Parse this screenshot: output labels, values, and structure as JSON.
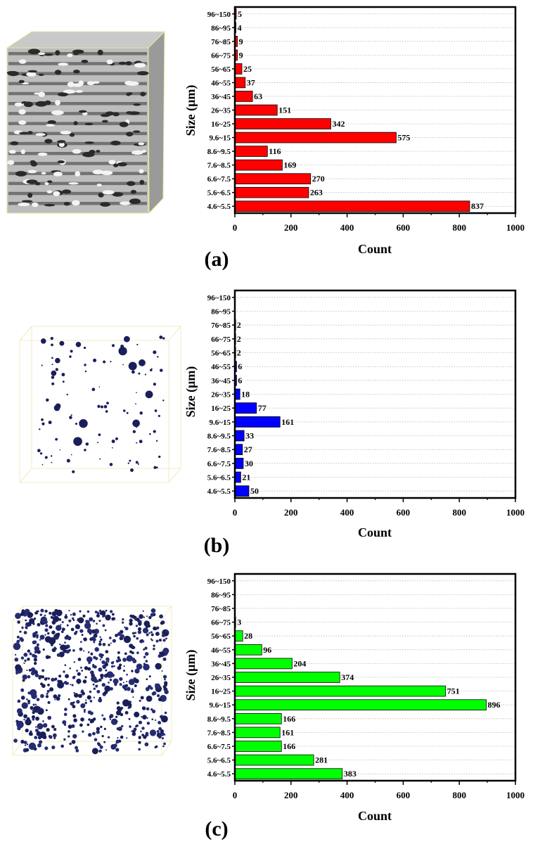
{
  "figure": {
    "panels": [
      {
        "label": "(a)",
        "xlabel": "Count",
        "ylabel": "Size (μm)"
      },
      {
        "label": "(b)",
        "xlabel": "Count",
        "ylabel": "Size (μm)"
      },
      {
        "label": "(c)",
        "xlabel": "Count",
        "ylabel": "Size (μm)"
      }
    ]
  },
  "chart_data": [
    {
      "type": "bar",
      "orientation": "horizontal",
      "panel_label": "(a)",
      "categories": [
        "96~150",
        "86~95",
        "76~85",
        "66~75",
        "56~65",
        "46~55",
        "36~45",
        "26~35",
        "16~25",
        "9.6~15",
        "8.6~9.5",
        "7.6~8.5",
        "6.6~7.5",
        "5.6~6.5",
        "4.6~5.5"
      ],
      "values": [
        5,
        4,
        9,
        9,
        25,
        37,
        63,
        151,
        342,
        575,
        116,
        169,
        270,
        263,
        837
      ],
      "data_labels": [
        "5",
        "4",
        "9",
        "9",
        "25",
        "37",
        "63",
        "151",
        "342",
        "575",
        "116",
        "169",
        "270",
        "263",
        "837"
      ],
      "xlabel": "Count",
      "ylabel": "Size (μm)",
      "xlim": [
        0,
        1000
      ],
      "xticks": [
        0,
        200,
        400,
        600,
        800,
        1000
      ],
      "grid": "horizontal dotted",
      "bar_color": "#ff0000",
      "image_description": "gray porous 3D volume"
    },
    {
      "type": "bar",
      "orientation": "horizontal",
      "panel_label": "(b)",
      "categories": [
        "96~150",
        "86~95",
        "76~85",
        "66~75",
        "56~65",
        "46~55",
        "36~45",
        "26~35",
        "16~25",
        "9.6~15",
        "8.6~9.5",
        "7.6~8.5",
        "6.6~7.5",
        "5.6~6.5",
        "4.6~5.5"
      ],
      "values": [
        0,
        0,
        2,
        2,
        2,
        6,
        6,
        18,
        77,
        161,
        33,
        27,
        30,
        21,
        50
      ],
      "data_labels": [
        "",
        "",
        "2",
        "2",
        "2",
        "6",
        "6",
        "18",
        "77",
        "161",
        "33",
        "27",
        "30",
        "21",
        "50"
      ],
      "xlabel": "Count",
      "ylabel": "Size (μm)",
      "xlim": [
        0,
        1000
      ],
      "xticks": [
        0,
        200,
        400,
        600,
        800,
        1000
      ],
      "grid": "horizontal dotted",
      "bar_color": "#0000ff",
      "image_description": "sparse navy pores in wireframe box"
    },
    {
      "type": "bar",
      "orientation": "horizontal",
      "panel_label": "(c)",
      "categories": [
        "96~150",
        "86~95",
        "76~85",
        "66~75",
        "56~65",
        "46~55",
        "36~45",
        "26~35",
        "16~25",
        "9.6~15",
        "8.6~9.5",
        "7.6~8.5",
        "6.6~7.5",
        "5.6~6.5",
        "4.6~5.5"
      ],
      "values": [
        0,
        0,
        0,
        3,
        28,
        96,
        204,
        374,
        751,
        896,
        166,
        161,
        166,
        281,
        383
      ],
      "data_labels": [
        "",
        "",
        "",
        "3",
        "28",
        "96",
        "204",
        "374",
        "751",
        "896",
        "166",
        "161",
        "166",
        "281",
        "383"
      ],
      "xlabel": "Count",
      "ylabel": "Size (μm)",
      "xlim": [
        0,
        1000
      ],
      "xticks": [
        0,
        200,
        400,
        600,
        800,
        1000
      ],
      "grid": "horizontal dotted",
      "bar_color": "#00ff00",
      "image_description": "dense navy pores in wireframe box"
    }
  ]
}
